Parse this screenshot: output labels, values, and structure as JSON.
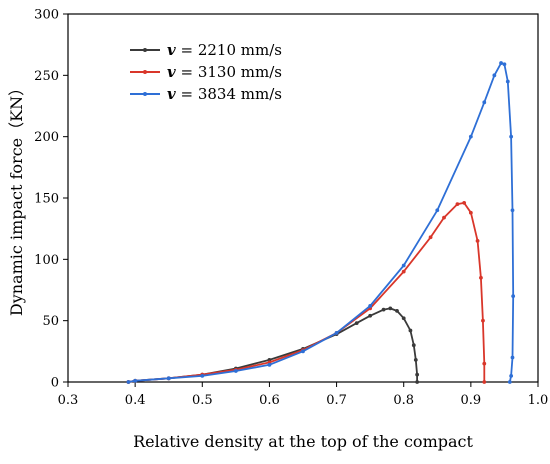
{
  "chart_data": {
    "type": "line",
    "xlabel": "Relative density at the top of the compact",
    "ylabel": "Dynamic impact force（KN）",
    "xlim": [
      0.3,
      1.0
    ],
    "ylim": [
      0,
      300
    ],
    "x_ticks": [
      "0.3",
      "0.4",
      "0.5",
      "0.6",
      "0.7",
      "0.8",
      "0.9",
      "1.0"
    ],
    "y_ticks": [
      "0",
      "50",
      "100",
      "150",
      "200",
      "250",
      "300"
    ],
    "legend_position": "top-left",
    "grid": false,
    "series": [
      {
        "name": "v = 2210 mm/s",
        "legend_var": "v",
        "legend_text": " = 2210 mm/s",
        "color": "#3a3a3a",
        "x": [
          0.39,
          0.4,
          0.45,
          0.5,
          0.55,
          0.6,
          0.65,
          0.7,
          0.73,
          0.75,
          0.77,
          0.78,
          0.79,
          0.8,
          0.81,
          0.815,
          0.818,
          0.82,
          0.82
        ],
        "y": [
          0,
          1,
          3,
          6,
          11,
          18,
          27,
          39,
          48,
          54,
          59,
          60,
          58,
          52,
          42,
          30,
          18,
          6,
          0
        ]
      },
      {
        "name": "v = 3130 mm/s",
        "legend_var": "v",
        "legend_text": " = 3130 mm/s",
        "color": "#d9362a",
        "x": [
          0.39,
          0.4,
          0.45,
          0.5,
          0.55,
          0.6,
          0.65,
          0.7,
          0.75,
          0.8,
          0.84,
          0.86,
          0.88,
          0.89,
          0.9,
          0.91,
          0.915,
          0.918,
          0.92,
          0.92
        ],
        "y": [
          0,
          1,
          3,
          6,
          10,
          16,
          26,
          40,
          60,
          90,
          118,
          134,
          145,
          146,
          138,
          115,
          85,
          50,
          15,
          0
        ]
      },
      {
        "name": "v = 3834 mm/s",
        "legend_var": "v",
        "legend_text": " = 3834 mm/s",
        "color": "#2e6fd6",
        "x": [
          0.39,
          0.4,
          0.45,
          0.5,
          0.55,
          0.6,
          0.65,
          0.7,
          0.75,
          0.8,
          0.85,
          0.9,
          0.92,
          0.935,
          0.945,
          0.95,
          0.955,
          0.96,
          0.962,
          0.963,
          0.962,
          0.96,
          0.958
        ],
        "y": [
          0,
          1,
          3,
          5,
          9,
          14,
          25,
          40,
          62,
          95,
          140,
          200,
          228,
          250,
          260,
          259,
          245,
          200,
          140,
          70,
          20,
          5,
          0
        ]
      }
    ]
  }
}
